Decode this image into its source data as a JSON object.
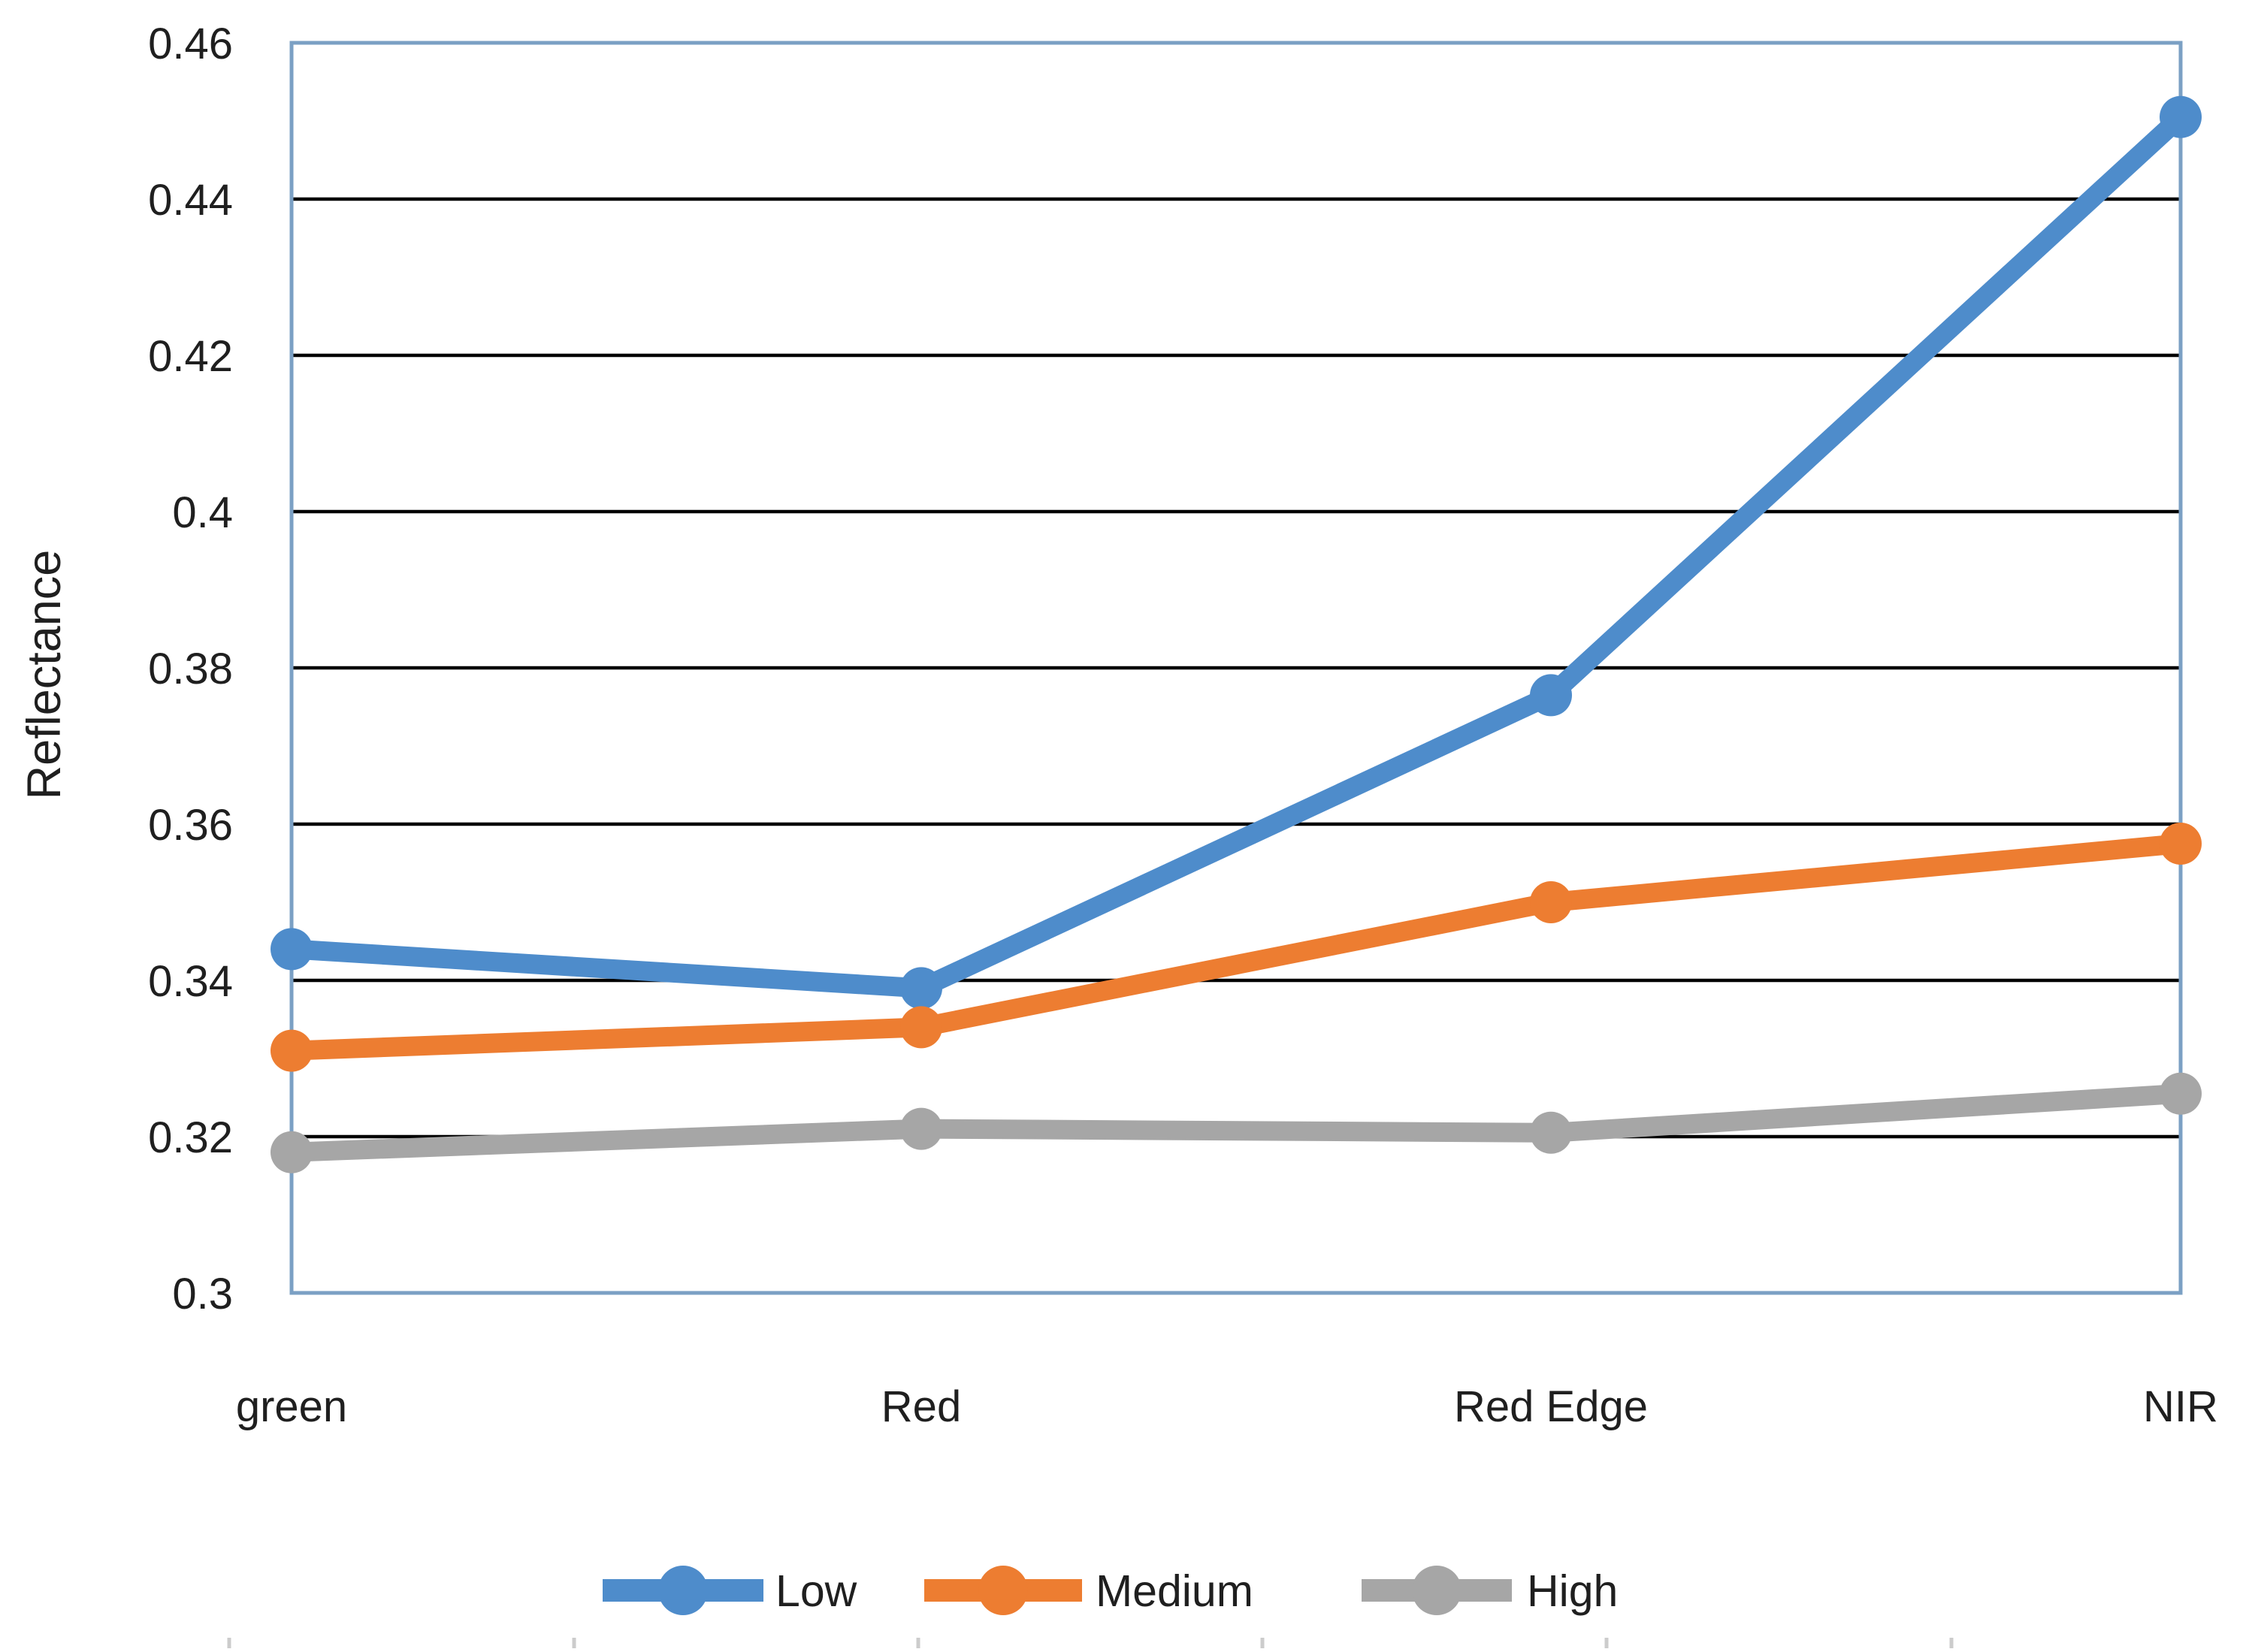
{
  "chart_data": {
    "type": "line",
    "title": "",
    "xlabel": "",
    "ylabel": "Reflectance",
    "categories": [
      "green",
      "Red",
      "Red Edge",
      "NIR"
    ],
    "series": [
      {
        "name": "Low",
        "color": "#4E8CCB",
        "values": [
          0.344,
          0.339,
          0.3765,
          0.4505
        ]
      },
      {
        "name": "Medium",
        "color": "#ED7D31",
        "values": [
          0.331,
          0.334,
          0.35,
          0.3575
        ]
      },
      {
        "name": "High",
        "color": "#A6A6A6",
        "values": [
          0.318,
          0.321,
          0.3205,
          0.3255
        ]
      }
    ],
    "ylim": [
      0.3,
      0.46
    ],
    "ytick_step": 0.02,
    "ytick_labels": [
      "0.46",
      "0.44",
      "0.42",
      "0.4",
      "0.38",
      "0.36",
      "0.34",
      "0.32",
      "0.3"
    ],
    "grid": "horizontal-black-lines",
    "legend_position": "bottom-center",
    "plot_border_color": "#7BA0C4",
    "gridline_color": "#000000",
    "text_color": "#1F1F1F",
    "bottom_tick_color": "#CCCCCC"
  },
  "legend": {
    "items": [
      {
        "label": "Low",
        "swatch": "line-with-dot-icon",
        "color": "#4E8CCB"
      },
      {
        "label": "Medium",
        "swatch": "line-with-dot-icon",
        "color": "#ED7D31"
      },
      {
        "label": "High",
        "swatch": "line-with-dot-icon",
        "color": "#A6A6A6"
      }
    ]
  }
}
